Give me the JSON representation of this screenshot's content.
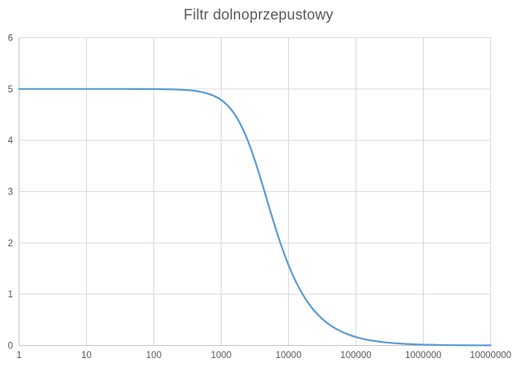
{
  "chart_data": {
    "type": "line",
    "title": "Filtr dolnoprzepustowy",
    "xlabel": "",
    "ylabel": "",
    "x_scale": "log",
    "xlim": [
      1,
      10000000
    ],
    "ylim": [
      0,
      6
    ],
    "grid": true,
    "legend_position": "none",
    "x_tick_labels": [
      "1",
      "10",
      "100",
      "1000",
      "10000",
      "100000",
      "1000000",
      "10000000"
    ],
    "x_ticks": [
      1,
      10,
      100,
      1000,
      10000,
      100000,
      1000000,
      10000000
    ],
    "y_tick_labels": [
      "0",
      "1",
      "2",
      "3",
      "4",
      "5",
      "6"
    ],
    "y_ticks": [
      0,
      1,
      2,
      3,
      4,
      5,
      6
    ],
    "series": [
      {
        "name": "Filtr dolnoprzepustowy",
        "color": "#5B9BD5",
        "points": [
          [
            1,
            5
          ],
          [
            1.33,
            5
          ],
          [
            1.78,
            5
          ],
          [
            2.37,
            5
          ],
          [
            3.16,
            5
          ],
          [
            4.22,
            5
          ],
          [
            5.62,
            5
          ],
          [
            7.5,
            5
          ],
          [
            10,
            5
          ],
          [
            13.3,
            5
          ],
          [
            17.8,
            5
          ],
          [
            23.7,
            5
          ],
          [
            31.6,
            5
          ],
          [
            42.2,
            5
          ],
          [
            56.2,
            4.999
          ],
          [
            75,
            4.999
          ],
          [
            100,
            4.998
          ],
          [
            133,
            4.996
          ],
          [
            178,
            4.993
          ],
          [
            237,
            4.987
          ],
          [
            316,
            4.977
          ],
          [
            422,
            4.96
          ],
          [
            562,
            4.929
          ],
          [
            750,
            4.876
          ],
          [
            1000,
            4.785
          ],
          [
            1334,
            4.636
          ],
          [
            1778,
            4.402
          ],
          [
            2371,
            4.06
          ],
          [
            3162,
            3.61
          ],
          [
            4217,
            3.081
          ],
          [
            5623,
            2.531
          ],
          [
            7499,
            2.014
          ],
          [
            10000,
            1.567
          ],
          [
            13335,
            1.201
          ],
          [
            17783,
            0.912
          ],
          [
            23714,
            0.689
          ],
          [
            31623,
            0.519
          ],
          [
            42170,
            0.39
          ],
          [
            56234,
            0.293
          ],
          [
            74989,
            0.22
          ],
          [
            100000,
            0.165
          ],
          [
            133352,
            0.124
          ],
          [
            177828,
            0.093
          ],
          [
            237137,
            0.07
          ],
          [
            316228,
            0.052
          ],
          [
            421697,
            0.039
          ],
          [
            562341,
            0.029
          ],
          [
            749894,
            0.022
          ],
          [
            1000000,
            0.017
          ],
          [
            1778279,
            0.009
          ],
          [
            3162278,
            0.005
          ],
          [
            5623413,
            0.003
          ],
          [
            10000000,
            0.002
          ]
        ]
      }
    ],
    "colors": {
      "line": "#5B9BD5",
      "gridline": "#D9D9D9",
      "axis_line": "#C6C6C6",
      "tick_label": "#595959",
      "title": "#595959",
      "background": "#FFFFFF"
    }
  }
}
